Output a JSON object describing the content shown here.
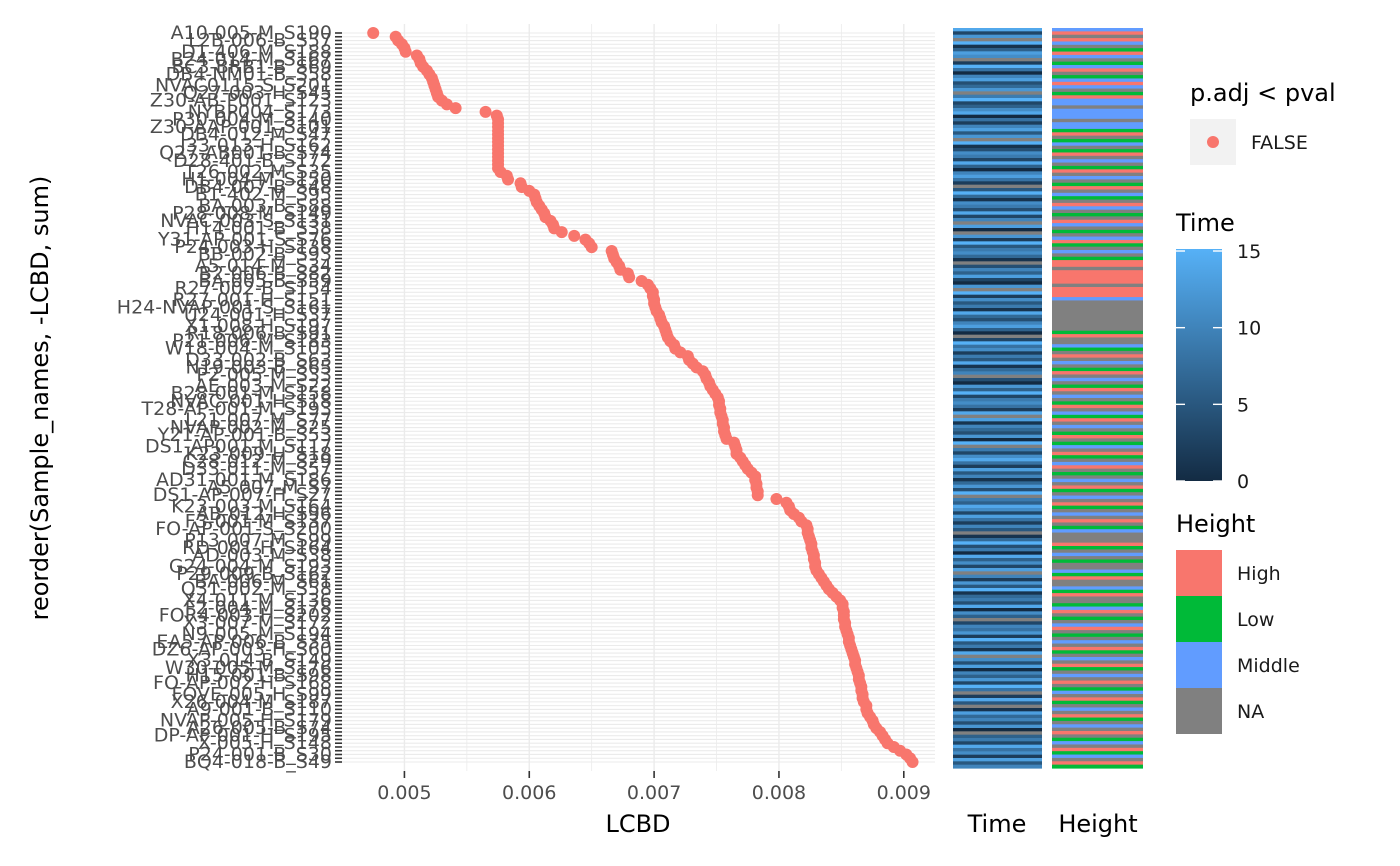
{
  "chart_data": {
    "type": "scatter",
    "title": "",
    "xlabel": "LCBD",
    "ylabel": "reorder(Sample_names, -LCBD, sum)",
    "xlim": [
      0.0045,
      0.00925
    ],
    "xticks": [
      "0.005",
      "0.006",
      "0.007",
      "0.008",
      "0.009"
    ],
    "xtick_values": [
      0.005,
      0.006,
      0.007,
      0.008,
      0.009
    ],
    "point_color": "#F8766D",
    "grid": "on",
    "panel_background": "#ffffff",
    "gridline_color": "#ebebeb",
    "series": [
      {
        "name": "FALSE",
        "values": [
          0.00475,
          0.00493,
          0.00495,
          0.00498,
          0.005,
          0.00501,
          0.0051,
          0.00512,
          0.00513,
          0.00515,
          0.00518,
          0.0052,
          0.00522,
          0.00523,
          0.00524,
          0.00525,
          0.00526,
          0.00527,
          0.0053,
          0.00534,
          0.00541,
          0.00565,
          0.00574,
          0.00575,
          0.00575,
          0.00575,
          0.00575,
          0.00575,
          0.00575,
          0.00575,
          0.00575,
          0.00575,
          0.00575,
          0.00575,
          0.00575,
          0.00575,
          0.00575,
          0.00577,
          0.00582,
          0.00583,
          0.00593,
          0.00594,
          0.006,
          0.00604,
          0.00605,
          0.00606,
          0.00608,
          0.0061,
          0.00612,
          0.00613,
          0.00617,
          0.00619,
          0.0062,
          0.00626,
          0.00636,
          0.00645,
          0.00648,
          0.0065,
          0.00666,
          0.00667,
          0.00668,
          0.0067,
          0.00672,
          0.00673,
          0.00679,
          0.0068,
          0.0069,
          0.00695,
          0.00697,
          0.00699,
          0.00699,
          0.007,
          0.007,
          0.00701,
          0.00702,
          0.00704,
          0.00705,
          0.00706,
          0.00708,
          0.00709,
          0.0071,
          0.00711,
          0.00713,
          0.00716,
          0.00717,
          0.00721,
          0.00727,
          0.00728,
          0.00731,
          0.00734,
          0.00739,
          0.00741,
          0.00742,
          0.00744,
          0.00745,
          0.00747,
          0.00749,
          0.00751,
          0.00752,
          0.00752,
          0.00753,
          0.00753,
          0.00754,
          0.00755,
          0.00755,
          0.00756,
          0.00756,
          0.00757,
          0.00758,
          0.00764,
          0.00765,
          0.00766,
          0.00766,
          0.00769,
          0.00771,
          0.00773,
          0.00775,
          0.00778,
          0.00781,
          0.00781,
          0.00782,
          0.00782,
          0.00783,
          0.00783,
          0.00798,
          0.00806,
          0.00808,
          0.00809,
          0.00812,
          0.00816,
          0.00818,
          0.00822,
          0.00823,
          0.00823,
          0.00824,
          0.00825,
          0.00826,
          0.00826,
          0.00827,
          0.00828,
          0.00828,
          0.00829,
          0.00829,
          0.0083,
          0.00832,
          0.00834,
          0.00836,
          0.00838,
          0.0084,
          0.00843,
          0.00846,
          0.00849,
          0.00851,
          0.00851,
          0.00852,
          0.00852,
          0.00852,
          0.00853,
          0.00853,
          0.00854,
          0.00855,
          0.00856,
          0.00856,
          0.00857,
          0.00858,
          0.00859,
          0.0086,
          0.00861,
          0.00861,
          0.00862,
          0.00863,
          0.00864,
          0.00864,
          0.00865,
          0.00866,
          0.00866,
          0.00867,
          0.00867,
          0.00868,
          0.0087,
          0.0087,
          0.00871,
          0.00873,
          0.00875,
          0.00876,
          0.00878,
          0.00881,
          0.00883,
          0.00885,
          0.00887,
          0.00892,
          0.00897,
          0.00902,
          0.00905,
          0.00907
        ]
      }
    ],
    "y_tick_labels": [
      "A10-005-M_S190",
      "L2B-006-B_S57",
      "D1-406-M_S188",
      "B24-014-M_S167",
      "BC3-BRB1-B_S69",
      "DB4-NM01-B_S58",
      "NVAC0115-S_S201",
      "Q27-003-H_S45",
      "Z30-AB-P001_S123",
      "NYBP004_S173",
      "P30-004-M_S140",
      "Z30-AAP-001_S101",
      "DB4-012-M_S47",
      "J33-013-H_S162",
      "Q27-AB001-B_S74",
      "D28-401-B_S172",
      "T26-002-M_S35",
      "H1-004-M_S150",
      "DB4-007-B_S48",
      "B1-402-M_S95",
      "BA-003-B_S88",
      "P28-008-M_S149",
      "NVAC-003-S_S131",
      "H14-001-B_S38",
      "Y31-AP-001-S_S76",
      "P24-003-H_S138",
      "BB-002-B_S93",
      "A5-014-M_S34",
      "B2-006-B_S82",
      "BA-005-B_S59",
      "R27-002-B_S154",
      "R27-001-H_S151",
      "H24-NVAP-001-S_S161",
      "U24-001-H_S37",
      "X1-008-H_S197",
      "R18-006-B_S91",
      "P21-006-M_S183",
      "W18-004-M_S105",
      "D33-002-B_S63",
      "N19-003-B_S65",
      "P2-005-M_S33",
      "AE-003-M_S22",
      "B28-001-M_S158",
      "NVAC-001-H_S18",
      "T28-AP-001-M_S193",
      "L21-007-M_S77",
      "NVAP-002-M_S25",
      "Y21-AP-001-B_S53",
      "DS1-AP001-M_S117",
      "K23-009-H_S18",
      "C28-012-M_S29",
      "D33-011-M_S57",
      "AD31-001-M_S186",
      "A5-007-M_S7",
      "DS1-AP-007-H_S27",
      "K23-003-M_S164",
      "AB-012-H_S96",
      "F3-001-M_S137",
      "FO-AP-001-S_S200",
      "P13-007-M_S99",
      "RD-001-H_S164",
      "AD-003-M_S38",
      "G24-004-M_S193",
      "P29-009-B_S162",
      "BA-006-M_S61",
      "Q31-002-M_S58",
      "X4-011-M_S136",
      "F2-004-M_S178",
      "FOR4-003-H_S202",
      "X3-007-M_S172",
      "N9-005-M_S194",
      "EA5-AP-006-B_S35",
      "DZ6-AP-003-H_S60",
      "X3-014-B_S149",
      "W30-005-M_S176",
      "H15-001-B_S98",
      "FO-AP-002-H_S168",
      "FOVE-005-H_S99",
      "X26-004-M_S187",
      "A9-001-B_S110",
      "NVAP-005-H_S179",
      "A26-005-B_S74",
      "DP-AP-001-H_S195",
      "X-005-H_S148",
      "P24-001-B_S30",
      "BQ4-018-B_S49"
    ]
  },
  "legend_pval": {
    "title": "p.adj < pval",
    "items": [
      {
        "label": "FALSE",
        "color": "#F8766D"
      }
    ]
  },
  "legend_time": {
    "title": "Time",
    "ticks": [
      "0",
      "5",
      "10",
      "15"
    ],
    "tick_values": [
      0,
      5,
      10,
      15
    ],
    "range": [
      0,
      15
    ],
    "color_low": "#132B43",
    "color_high": "#56B1F7"
  },
  "legend_height": {
    "title": "Height",
    "items": [
      {
        "label": "High",
        "color": "#F8766D"
      },
      {
        "label": "Low",
        "color": "#00BA38"
      },
      {
        "label": "Middle",
        "color": "#619CFF"
      },
      {
        "label": "NA",
        "color": "#808080"
      }
    ]
  },
  "strip_time": {
    "label": "Time",
    "values": [
      14,
      3,
      12,
      9,
      15,
      1,
      6,
      13,
      11,
      5,
      2,
      15,
      8,
      0,
      10,
      13,
      4,
      7,
      12,
      1,
      9,
      15,
      3,
      6,
      11,
      14,
      0,
      8,
      2,
      10,
      13,
      5,
      12,
      7,
      15,
      1,
      4,
      11,
      9,
      3,
      14,
      6,
      0,
      10,
      13,
      8,
      2,
      12,
      5,
      15,
      7,
      1,
      11,
      9,
      4,
      14,
      3,
      10,
      6,
      13,
      0,
      8,
      12,
      2,
      15,
      5,
      9,
      11,
      7,
      1,
      14,
      4,
      10,
      6,
      13,
      3,
      0,
      12,
      8,
      15,
      2,
      11,
      5,
      9,
      1,
      14,
      7,
      4,
      10,
      13,
      6,
      0,
      12,
      3,
      15,
      8,
      11,
      2,
      9,
      5,
      14,
      1,
      7,
      10,
      13,
      4,
      0,
      12,
      6,
      15,
      3,
      9,
      11,
      8,
      2,
      14,
      5,
      13,
      1,
      10,
      7,
      4,
      12,
      0,
      15,
      6,
      9,
      3,
      11,
      14,
      8,
      2,
      13,
      5,
      10,
      1,
      7,
      12,
      4,
      15,
      0,
      9,
      6,
      14,
      11,
      3,
      13,
      8,
      2,
      10,
      5,
      12,
      1,
      7,
      15,
      4,
      9,
      0,
      14,
      6,
      11,
      3,
      13,
      8,
      10,
      2,
      12,
      5,
      15,
      1,
      7,
      9,
      4,
      14,
      0,
      11,
      6,
      13,
      3,
      10,
      8,
      12,
      2,
      15,
      5,
      9,
      1,
      14,
      7,
      11,
      4,
      13,
      0,
      10,
      6,
      12,
      3,
      15,
      8,
      9,
      2,
      14,
      5,
      11,
      1,
      13,
      7,
      10,
      4,
      12,
      0,
      15,
      6,
      9,
      3,
      14,
      8,
      11,
      2,
      13,
      5,
      10
    ],
    "na_rows": [
      3,
      9,
      19,
      33,
      47,
      58,
      61,
      70,
      78,
      92,
      104,
      116,
      125,
      140,
      151,
      163,
      177,
      188,
      199,
      203,
      211
    ]
  },
  "strip_height": {
    "label": "Height",
    "values": [
      "Middle",
      "High",
      "NA",
      "High",
      "Middle",
      "NA",
      "Low",
      "High",
      "Middle",
      "NA",
      "Low",
      "Middle",
      "High",
      "NA",
      "Low",
      "Middle",
      "High",
      "Middle",
      "NA",
      "Low",
      "High",
      "Middle",
      "Middle",
      "NA",
      "Middle",
      "Middle",
      "Middle",
      "NA",
      "Middle",
      "Middle",
      "Low",
      "High",
      "NA",
      "Low",
      "Middle",
      "NA",
      "Low",
      "High",
      "NA",
      "Middle",
      "NA",
      "Low",
      "High",
      "NA",
      "Middle",
      "NA",
      "Low",
      "High",
      "NA",
      "Middle",
      "Low",
      "NA",
      "High",
      "Middle",
      "NA",
      "Low",
      "NA",
      "High",
      "Middle",
      "NA",
      "Low",
      "NA",
      "Middle",
      "High",
      "Low",
      "NA",
      "Middle",
      "NA",
      "Low",
      "High",
      "High",
      "NA",
      "High",
      "High",
      "High",
      "High",
      "NA",
      "High",
      "High",
      "High",
      "Middle",
      "NA",
      "NA",
      "NA",
      "NA",
      "NA",
      "NA",
      "NA",
      "NA",
      "NA",
      "Low",
      "High",
      "NA",
      "NA",
      "Middle",
      "Low",
      "NA",
      "High",
      "NA",
      "Middle",
      "NA",
      "Low",
      "High",
      "NA",
      "Middle",
      "NA",
      "Low",
      "High",
      "NA",
      "Middle",
      "NA",
      "Low",
      "High",
      "NA",
      "Middle",
      "Low",
      "High",
      "NA",
      "Middle",
      "NA",
      "Low",
      "High",
      "NA",
      "Low",
      "Middle",
      "NA",
      "High",
      "Low",
      "NA",
      "Middle",
      "High",
      "NA",
      "Low",
      "NA",
      "Middle",
      "NA",
      "High",
      "Low",
      "NA",
      "Middle",
      "NA",
      "High",
      "Low",
      "NA",
      "Middle",
      "NA",
      "High",
      "NA",
      "Low",
      "Middle",
      "NA",
      "NA",
      "NA",
      "High",
      "Low",
      "NA",
      "Middle",
      "NA",
      "Low",
      "NA",
      "NA",
      "Middle",
      "Low",
      "High",
      "NA",
      "NA",
      "Middle",
      "Low",
      "High",
      "NA",
      "NA",
      "Low",
      "Middle",
      "High",
      "NA",
      "Low",
      "NA",
      "Middle",
      "High",
      "NA",
      "Low",
      "NA",
      "Middle",
      "NA",
      "High",
      "Low",
      "NA",
      "Middle",
      "NA",
      "High",
      "Low",
      "NA",
      "Middle",
      "NA",
      "High",
      "NA",
      "Low",
      "Middle",
      "NA",
      "High",
      "Low",
      "NA",
      "Middle",
      "NA",
      "High",
      "Low",
      "NA",
      "Middle",
      "NA",
      "High",
      "NA",
      "Low",
      "Middle",
      "NA",
      "High",
      "Low",
      "Middle",
      "NA",
      "High",
      "Low"
    ]
  }
}
